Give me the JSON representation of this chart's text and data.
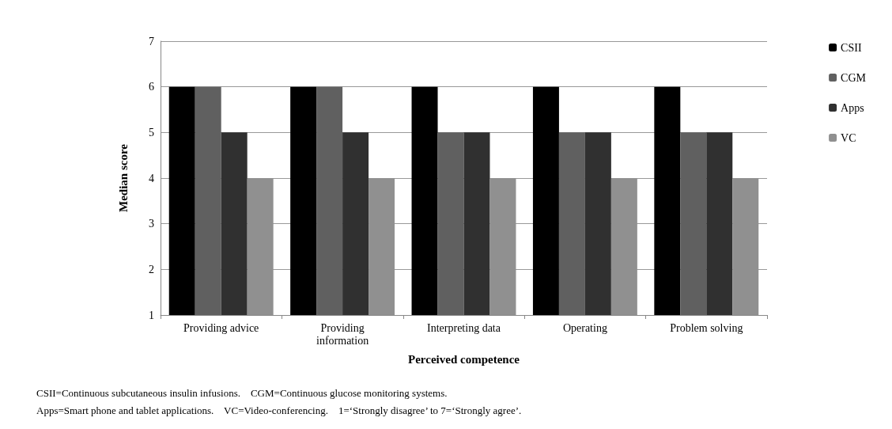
{
  "chart_data": {
    "type": "bar",
    "xlabel": "Perceived competence",
    "ylabel": "Median score",
    "categories": [
      "Providing advice",
      "Providing\ninformation",
      "Interpreting data",
      "Operating",
      "Problem solving"
    ],
    "series": [
      {
        "name": "CSII",
        "color": "#000000",
        "values": [
          6,
          6,
          6,
          6,
          6
        ]
      },
      {
        "name": "CGM",
        "color": "#606060",
        "values": [
          6,
          6,
          5,
          5,
          5
        ]
      },
      {
        "name": "Apps",
        "color": "#303030",
        "values": [
          5,
          5,
          5,
          5,
          5
        ]
      },
      {
        "name": "VC",
        "color": "#909090",
        "values": [
          4,
          4,
          4,
          4,
          4
        ]
      }
    ],
    "ylim": [
      1,
      7
    ],
    "yticks": [
      1,
      2,
      3,
      4,
      5,
      6,
      7
    ],
    "grid": "y",
    "legend": "right",
    "annotations": [
      "CSII=Continuous subcutaneous insulin infusions.    CGM=Continuous glucose monitoring systems.",
      "Apps=Smart phone and tablet applications.    VC=Video-conferencing.    1=‘Strongly disagree’ to 7=‘Strongly agree’."
    ]
  }
}
